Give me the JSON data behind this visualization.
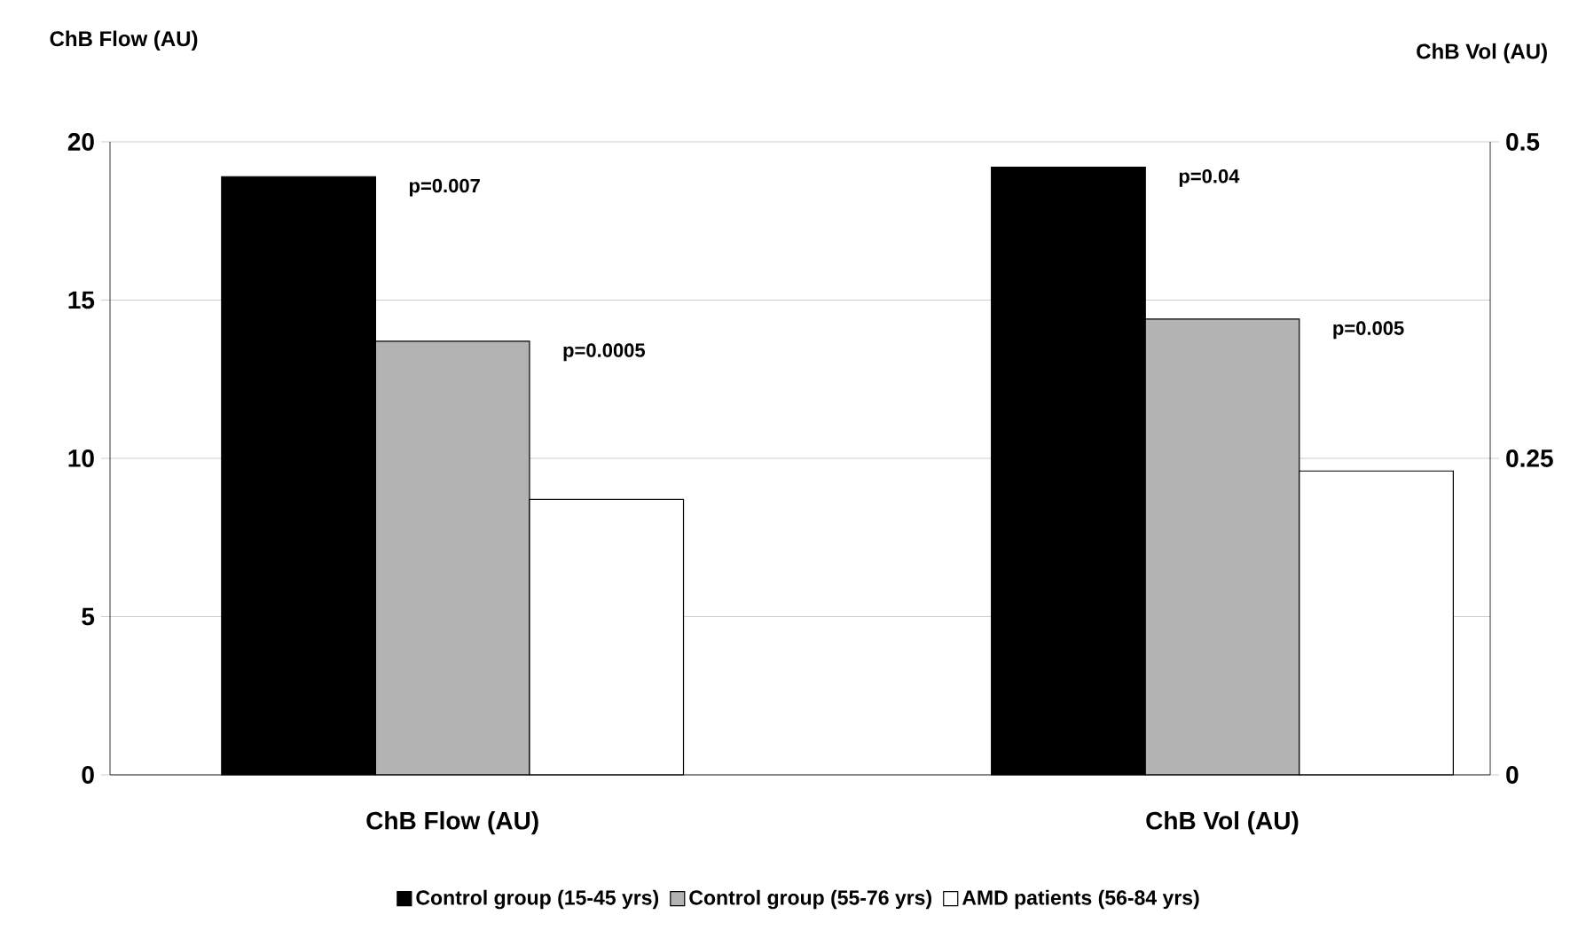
{
  "chart_data": {
    "type": "bar",
    "categories": [
      "ChB Flow (AU)",
      "ChB Vol (AU)"
    ],
    "ylabel": "ChB Flow (AU)",
    "y2label": "ChB Vol (AU)",
    "ylim": [
      0,
      20
    ],
    "yticks": [
      0,
      5,
      10,
      15,
      20
    ],
    "y2lim": [
      0,
      0.5
    ],
    "y2ticks": [
      0,
      0.25,
      0.5
    ],
    "grid": "y",
    "legend": "bottom",
    "annotations": [
      "p=0.007",
      "p=0.0005",
      "p=0.04",
      "p=0.005"
    ],
    "series": [
      {
        "name": "Control group (15-45 yrs)",
        "color": "#000000",
        "values": [
          18.9,
          null
        ]
      },
      {
        "name": "Control group (55-76 yrs)",
        "color": "#b3b3b3",
        "values": [
          13.7,
          null
        ]
      },
      {
        "name": "AMD patients (56-84 yrs)",
        "color": "#ffffff",
        "values": [
          8.7,
          null
        ]
      },
      {
        "color": "#000000",
        "axis": "y2",
        "values": [
          null,
          0.48
        ]
      },
      {
        "color": "#b3b3b3",
        "axis": "y2",
        "values": [
          null,
          0.36
        ]
      },
      {
        "color": "#ffffff",
        "axis": "y2",
        "values": [
          null,
          0.24
        ]
      }
    ]
  }
}
